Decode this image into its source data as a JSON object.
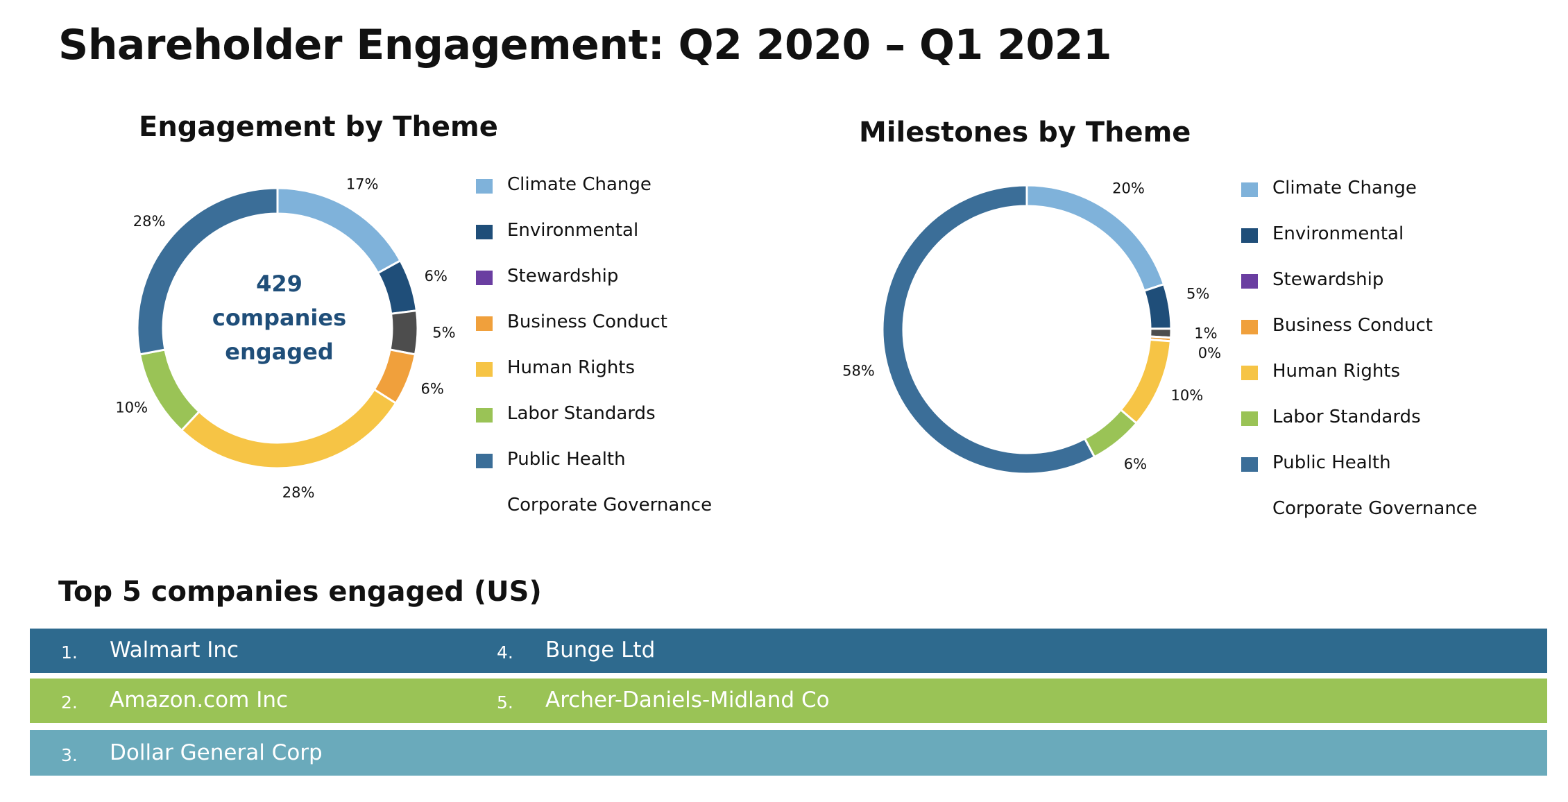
{
  "title": "Shareholder Engagement: Q2 2020 – Q1 2021",
  "colors": {
    "Climate Change": "#7fb2da",
    "Environmental": "#1f4e79",
    "Stewardship": "#6a3ea1",
    "Business Conduct": "#f0a03c",
    "Human Rights": "#f6c445",
    "Labor Standards": "#9ac356",
    "Public Health": "#3b6e98",
    "Corporate Governance": "#4d4d4d"
  },
  "chart_data": [
    {
      "type": "pie",
      "title": "Engagement by Theme",
      "center_text": [
        "429",
        "companies",
        "engaged"
      ],
      "slices": [
        {
          "label": "Climate Change",
          "value": 17,
          "display": "17%"
        },
        {
          "label": "Environmental",
          "value": 6,
          "display": "6%"
        },
        {
          "label": "Corporate Governance",
          "value": 5,
          "display": "5%"
        },
        {
          "label": "Business Conduct",
          "value": 6,
          "display": "6%"
        },
        {
          "label": "Human Rights",
          "value": 28,
          "display": "28%"
        },
        {
          "label": "Labor Standards",
          "value": 10,
          "display": "10%"
        },
        {
          "label": "Public Health",
          "value": 28,
          "display": "28%"
        }
      ],
      "legend": [
        "Climate Change",
        "Environmental",
        "Stewardship",
        "Business Conduct",
        "Human Rights",
        "Labor Standards",
        "Public Health",
        "Corporate Governance"
      ],
      "legend_position": "right"
    },
    {
      "type": "pie",
      "title": "Milestones by Theme",
      "slices": [
        {
          "label": "Climate Change",
          "value": 20,
          "display": "20%"
        },
        {
          "label": "Environmental",
          "value": 5,
          "display": "5%"
        },
        {
          "label": "Corporate Governance",
          "value": 1,
          "display": "1%"
        },
        {
          "label": "Business Conduct",
          "value": 0.4,
          "display": "0%"
        },
        {
          "label": "Human Rights",
          "value": 10,
          "display": "10%"
        },
        {
          "label": "Labor Standards",
          "value": 6,
          "display": "6%"
        },
        {
          "label": "Public Health",
          "value": 58,
          "display": "58%"
        }
      ],
      "legend": [
        "Climate Change",
        "Environmental",
        "Stewardship",
        "Business Conduct",
        "Human Rights",
        "Labor Standards",
        "Public Health",
        "Corporate Governance"
      ],
      "legend_position": "right"
    }
  ],
  "top5": {
    "title": "Top 5 companies engaged (US)",
    "rows": [
      {
        "color": "#2e6a8e",
        "items": [
          {
            "num": "1.",
            "name": "Walmart Inc"
          },
          {
            "num": "4.",
            "name": "Bunge Ltd"
          }
        ]
      },
      {
        "color": "#9ac356",
        "items": [
          {
            "num": "2.",
            "name": "Amazon.com Inc"
          },
          {
            "num": "5.",
            "name": "Archer-Daniels-Midland Co"
          }
        ]
      },
      {
        "color": "#6aaabb",
        "items": [
          {
            "num": "3.",
            "name": "Dollar General Corp"
          }
        ]
      }
    ]
  }
}
